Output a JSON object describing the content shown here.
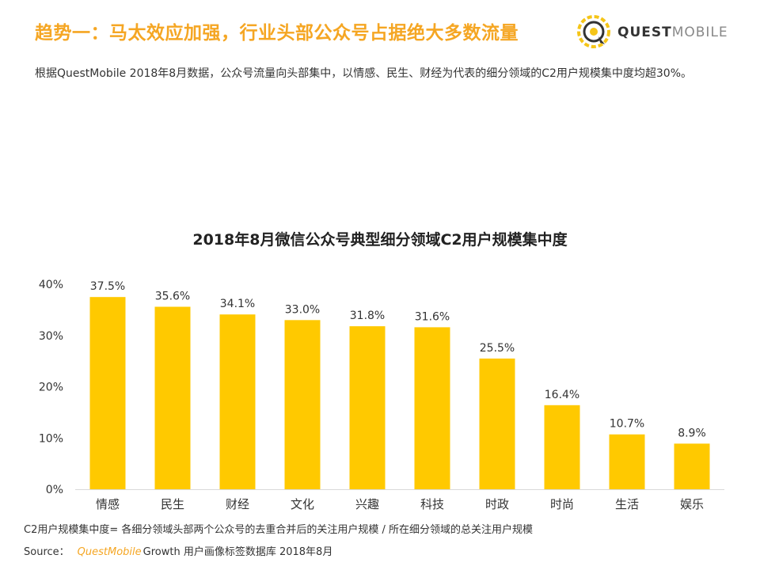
{
  "header": {
    "title": "趋势一：马太效应加强，行业头部公众号占据绝大多数流量",
    "logo_text_bold": "QUEST",
    "logo_text_light": "MOBILE"
  },
  "summary": "根据QuestMobile 2018年8月数据，公众号流量向头部集中，以情感、民生、财经为代表的细分领域的C2用户规模集中度均超30%。",
  "chart_data": {
    "type": "bar",
    "title": "2018年8月微信公众号典型细分领域C2用户规模集中度",
    "categories": [
      "情感",
      "民生",
      "财经",
      "文化",
      "兴趣",
      "科技",
      "时政",
      "时尚",
      "生活",
      "娱乐"
    ],
    "values": [
      37.5,
      35.6,
      34.1,
      33.0,
      31.8,
      31.6,
      25.5,
      16.4,
      10.7,
      8.9
    ],
    "value_labels": [
      "37.5%",
      "35.6%",
      "34.1%",
      "33.0%",
      "31.8%",
      "31.6%",
      "25.5%",
      "16.4%",
      "10.7%",
      "8.9%"
    ],
    "yticks": [
      0,
      10,
      20,
      30,
      40
    ],
    "ytick_labels": [
      "0%",
      "10%",
      "20%",
      "30%",
      "40%"
    ],
    "ylim": [
      0,
      40
    ],
    "xlabel": "",
    "ylabel": "",
    "grid": false,
    "bar_color": "#FFC900"
  },
  "footnote": "C2用户规模集中度= 各细分领域头部两个公众号的去重合并后的关注用户规模 / 所在细分领域的总关注用户规模",
  "source": {
    "label": "Source：",
    "brand": "QuestMobile",
    "rest": "Growth 用户画像标签数据库 2018年8月"
  },
  "colors": {
    "accent": "#F5A623",
    "bar": "#FFC900"
  }
}
